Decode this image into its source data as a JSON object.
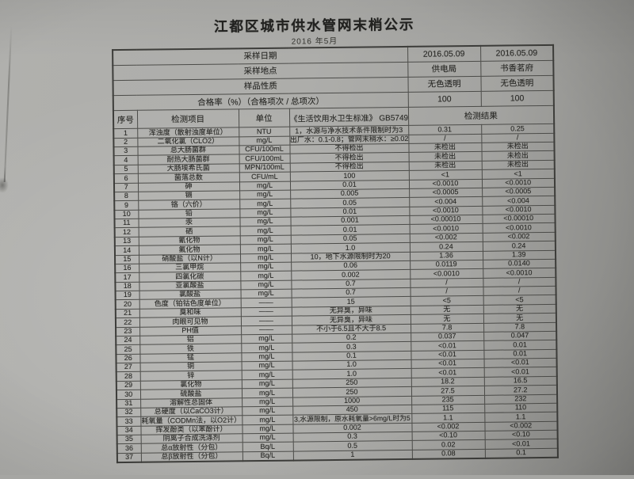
{
  "page": {
    "title": "江都区城市供水管网末梢公示",
    "subtitle": "2016 年5月"
  },
  "table": {
    "meta_rows": [
      {
        "label": "采样日期",
        "values": [
          "2016.05.09",
          "2016.05.09"
        ]
      },
      {
        "label": "采样地点",
        "values": [
          "供电局",
          "书香茗府"
        ]
      },
      {
        "label": "样品性质",
        "values": [
          "无色透明",
          "无色透明"
        ]
      },
      {
        "label": "合格率（%）（合格项次 / 总项次）",
        "values": [
          "100",
          "100"
        ]
      }
    ],
    "columns": [
      "序号",
      "检测项目",
      "单位",
      "《生活饮用水卫生标准》 GB5749",
      "检测结果"
    ],
    "rows": [
      [
        "1",
        "浑浊度（散射浊度单位）",
        "NTU",
        "1，水源与净水技术条件限制时为3",
        "0.31",
        "0.25"
      ],
      [
        "2",
        "二氧化氯（CLO2）",
        "mg/L",
        "出厂水：0.1-0.8；管网末稍水：≥0.02",
        "/",
        "/"
      ],
      [
        "3",
        "总大肠菌群",
        "CFU/100mL",
        "不得检出",
        "未检出",
        "未检出"
      ],
      [
        "4",
        "耐热大肠菌群",
        "CFU/100mL",
        "不得检出",
        "未检出",
        "未检出"
      ],
      [
        "5",
        "大肠埃希氏菌",
        "MPN/100mL",
        "不得检出",
        "未检出",
        "未检出"
      ],
      [
        "6",
        "菌落总数",
        "CFU/mL",
        "100",
        "<1",
        "<1"
      ],
      [
        "7",
        "砷",
        "mg/L",
        "0.01",
        "<0.0010",
        "<0.0010"
      ],
      [
        "8",
        "镉",
        "mg/L",
        "0.005",
        "<0.0005",
        "<0.0005"
      ],
      [
        "9",
        "铬（六价）",
        "mg/L",
        "0.05",
        "<0.004",
        "<0.004"
      ],
      [
        "10",
        "铅",
        "mg/L",
        "0.01",
        "<0.0010",
        "<0.0010"
      ],
      [
        "11",
        "汞",
        "mg/L",
        "0.001",
        "<0.00010",
        "<0.00010"
      ],
      [
        "12",
        "硒",
        "mg/L",
        "0.01",
        "<0.0010",
        "<0.0010"
      ],
      [
        "13",
        "氰化物",
        "mg/L",
        "0.05",
        "<0.002",
        "<0.002"
      ],
      [
        "14",
        "氟化物",
        "mg/L",
        "1.0",
        "0.24",
        "0.24"
      ],
      [
        "15",
        "硝酸盐（以N计）",
        "mg/L",
        "10，地下水源限制时为20",
        "1.36",
        "1.39"
      ],
      [
        "16",
        "三氯甲烷",
        "mg/L",
        "0.06",
        "0.0119",
        "0.0140"
      ],
      [
        "17",
        "四氯化碳",
        "mg/L",
        "0.002",
        "<0.0010",
        "<0.0010"
      ],
      [
        "18",
        "亚氯酸盐",
        "mg/L",
        "0.7",
        "/",
        "/"
      ],
      [
        "19",
        "氯酸盐",
        "mg/L",
        "0.7",
        "/",
        "/"
      ],
      [
        "20",
        "色度（铂钴色度单位）",
        "——",
        "15",
        "<5",
        "<5"
      ],
      [
        "21",
        "臭和味",
        "——",
        "无异臭，异味",
        "无",
        "无"
      ],
      [
        "22",
        "肉眼可见物",
        "——",
        "无异臭，异味",
        "无",
        "无"
      ],
      [
        "23",
        "PH值",
        "——",
        "不小于6.5且不大于8.5",
        "7.8",
        "7.8"
      ],
      [
        "24",
        "铝",
        "mg/L",
        "0.2",
        "0.037",
        "0.047"
      ],
      [
        "25",
        "铁",
        "mg/L",
        "0.3",
        "<0.01",
        "0.01"
      ],
      [
        "26",
        "锰",
        "mg/L",
        "0.1",
        "<0.01",
        "0.01"
      ],
      [
        "27",
        "铜",
        "mg/L",
        "1.0",
        "<0.01",
        "<0.01"
      ],
      [
        "28",
        "锌",
        "mg/L",
        "1.0",
        "<0.01",
        "<0.01"
      ],
      [
        "29",
        "氯化物",
        "mg/L",
        "250",
        "18.2",
        "16.5"
      ],
      [
        "30",
        "硫酸盐",
        "mg/L",
        "250",
        "27.5",
        "27.2"
      ],
      [
        "31",
        "溶解性总固体",
        "mg/L",
        "1000",
        "235",
        "232"
      ],
      [
        "32",
        "总硬度（以CaCO3计）",
        "mg/L",
        "450",
        "115",
        "110"
      ],
      [
        "33",
        "耗氧量（CODMn法，以O2计）",
        "mg/L",
        "3,水源限制，原水耗氧量>6mg/L时为5",
        "1.1",
        "1.1"
      ],
      [
        "34",
        "挥发酚类（以苯酚计）",
        "mg/L",
        "0.002",
        "<0.002",
        "<0.002"
      ],
      [
        "35",
        "阴离子合成洗涤剂",
        "mg/L",
        "0.3",
        "<0.10",
        "<0.10"
      ],
      [
        "36",
        "总α放射性（分包）",
        "Bq/L",
        "0.5",
        "0.02",
        "<0.01"
      ],
      [
        "37",
        "总β放射性（分包）",
        "Bq/L",
        "1",
        "0.08",
        "0.1"
      ]
    ]
  }
}
